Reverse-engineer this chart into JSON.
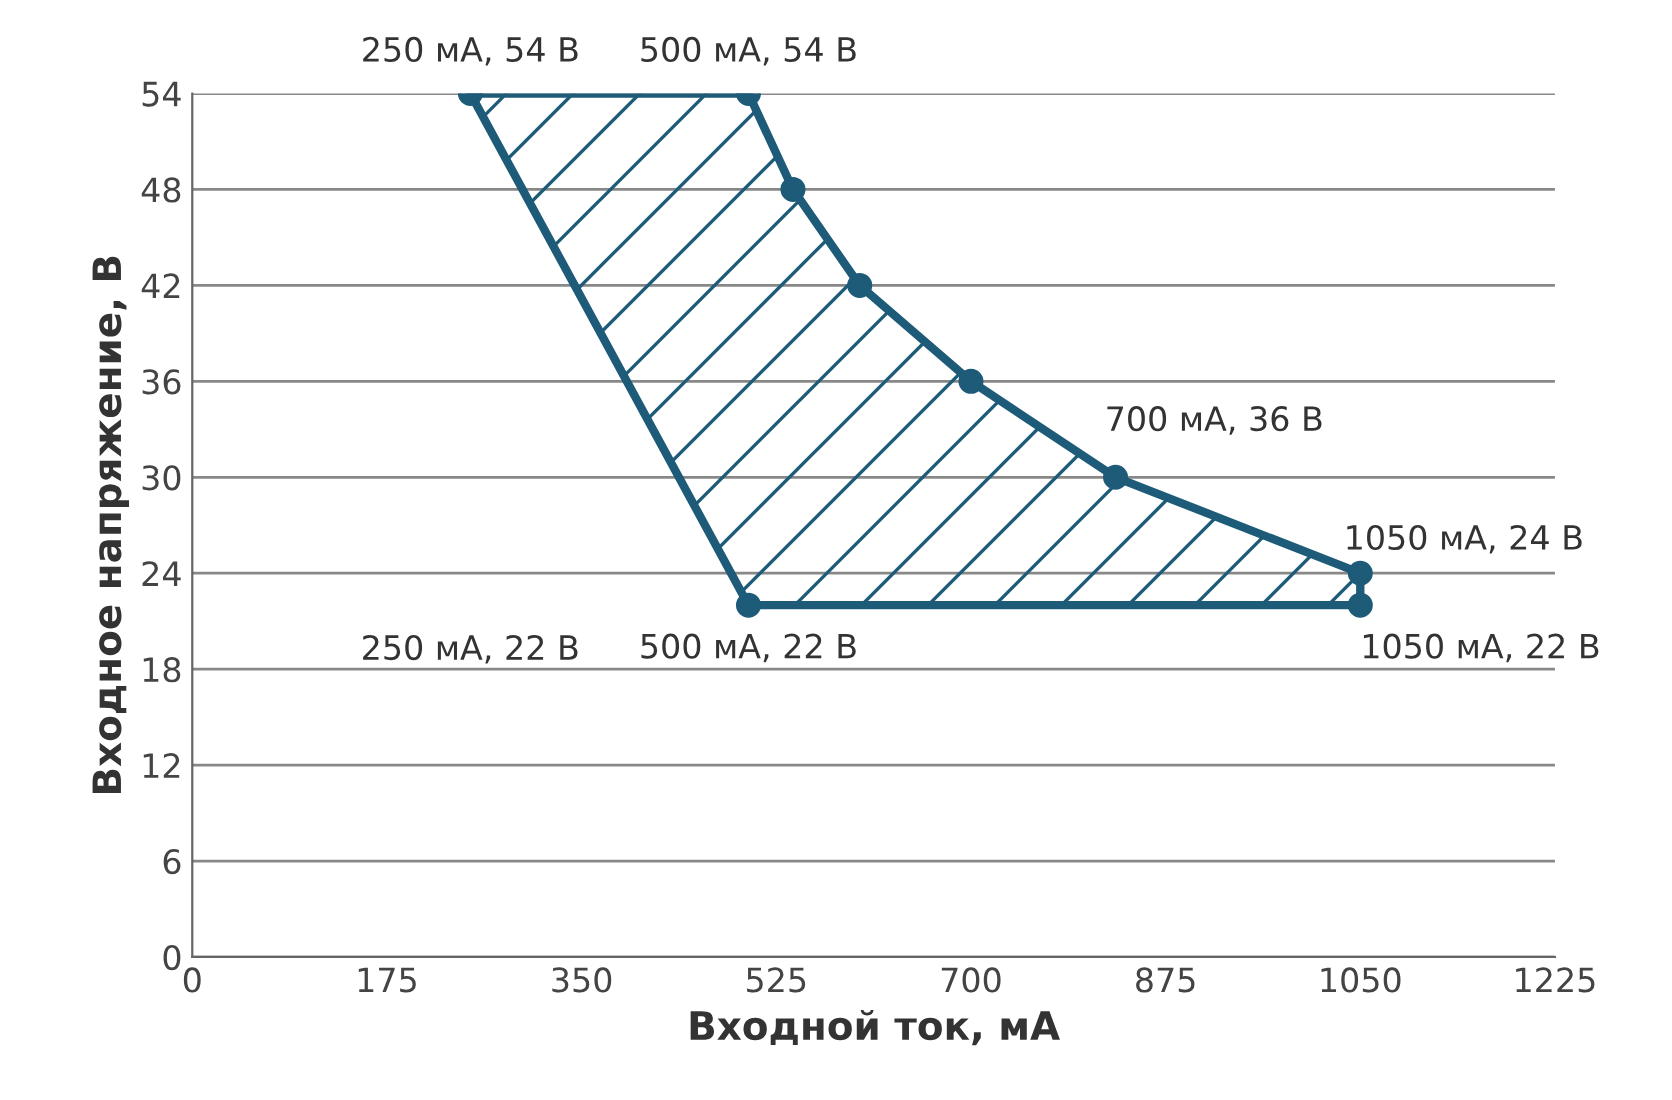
{
  "chart_data": {
    "type": "area",
    "xlabel": "Входной ток, мА",
    "ylabel": "Входное напряжение, В",
    "series": [
      {
        "color": "#1d5b78",
        "x": [
          250,
          500,
          540,
          600,
          700,
          830,
          1050,
          1050,
          500
        ],
        "values": [
          54,
          54,
          48,
          42,
          36,
          30,
          24,
          22,
          22
        ]
      }
    ],
    "xlim": [
      0,
      1225
    ],
    "xticks": [
      0,
      175,
      350,
      525,
      700,
      875,
      1050,
      1225
    ],
    "ylim": [
      0,
      54
    ],
    "yticks": [
      0,
      6,
      12,
      18,
      24,
      30,
      36,
      42,
      48,
      54
    ],
    "grid": "y",
    "marker": "circle",
    "line_style": "solid",
    "annotations": [
      {
        "text": "250 мА, 54 В",
        "x": 250,
        "y": 54
      },
      {
        "text": "500 мА, 54 В",
        "x": 500,
        "y": 54
      },
      "700 мА, 36 В",
      {
        "text": "1050 мА, 24 В",
        "x": 1050,
        "y": 24
      },
      "250 мА, 22 В",
      {
        "text": "500 мА, 22 В",
        "x": 500,
        "y": 22
      },
      {
        "text": "1050 мА, 22 В",
        "x": 1050,
        "y": 22
      }
    ]
  }
}
